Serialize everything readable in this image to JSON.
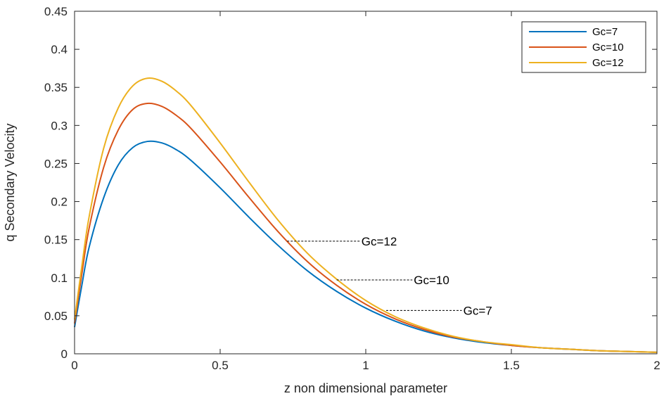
{
  "chart_data": {
    "type": "line",
    "title": "",
    "xlabel": "z non dimensional parameter",
    "ylabel": "q Secondary Velocity",
    "xlim": [
      0,
      2
    ],
    "ylim": [
      0,
      0.45
    ],
    "xticks": [
      0,
      0.5,
      1,
      1.5,
      2
    ],
    "xtick_labels": [
      "0",
      "0.5",
      "1",
      "1.5",
      "2"
    ],
    "yticks": [
      0,
      0.05,
      0.1,
      0.15,
      0.2,
      0.25,
      0.3,
      0.35,
      0.4,
      0.45
    ],
    "ytick_labels": [
      "0",
      "0.05",
      "0.1",
      "0.15",
      "0.2",
      "0.25",
      "0.3",
      "0.35",
      "0.4",
      "0.45"
    ],
    "grid": false,
    "legend_position": "top-right",
    "x": [
      0,
      0.025,
      0.05,
      0.1,
      0.15,
      0.2,
      0.25,
      0.3,
      0.35,
      0.4,
      0.5,
      0.6,
      0.7,
      0.8,
      0.9,
      1.0,
      1.1,
      1.2,
      1.3,
      1.4,
      1.5,
      1.6,
      1.7,
      1.8,
      1.9,
      2.0
    ],
    "series": [
      {
        "name": "Gc=7",
        "color": "#0072BD",
        "values": [
          0.035,
          0.09,
          0.14,
          0.205,
          0.248,
          0.271,
          0.279,
          0.277,
          0.268,
          0.254,
          0.218,
          0.179,
          0.142,
          0.109,
          0.082,
          0.06,
          0.043,
          0.03,
          0.021,
          0.015,
          0.011,
          0.008,
          0.006,
          0.004,
          0.003,
          0.002
        ]
      },
      {
        "name": "Gc=10",
        "color": "#D95319",
        "values": [
          0.04,
          0.105,
          0.165,
          0.245,
          0.294,
          0.321,
          0.329,
          0.325,
          0.313,
          0.296,
          0.252,
          0.205,
          0.16,
          0.121,
          0.09,
          0.065,
          0.046,
          0.032,
          0.022,
          0.016,
          0.011,
          0.008,
          0.006,
          0.004,
          0.003,
          0.002
        ]
      },
      {
        "name": "Gc=12",
        "color": "#EDB120",
        "values": [
          0.045,
          0.115,
          0.18,
          0.27,
          0.323,
          0.352,
          0.362,
          0.358,
          0.345,
          0.326,
          0.277,
          0.225,
          0.175,
          0.132,
          0.098,
          0.07,
          0.049,
          0.034,
          0.023,
          0.016,
          0.012,
          0.008,
          0.006,
          0.004,
          0.003,
          0.002
        ]
      }
    ],
    "annotations": [
      {
        "text": "Gc=12",
        "from_x": 0.73,
        "to_x": 0.98,
        "y": 0.148
      },
      {
        "text": "Gc=10",
        "from_x": 0.9,
        "to_x": 1.16,
        "y": 0.097
      },
      {
        "text": "Gc=7",
        "from_x": 1.07,
        "to_x": 1.33,
        "y": 0.057
      }
    ]
  }
}
